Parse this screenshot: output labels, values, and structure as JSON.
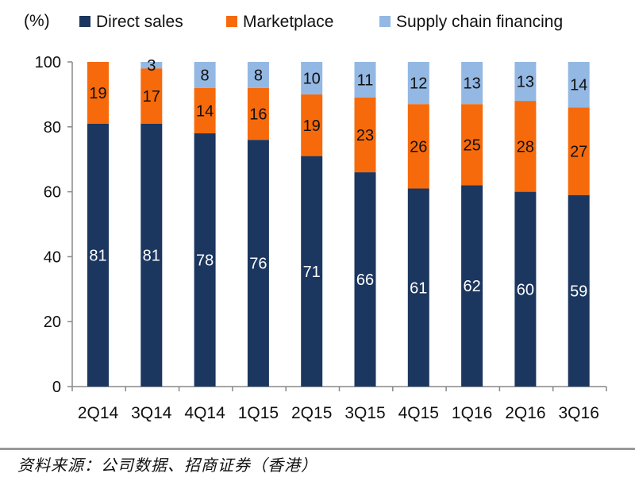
{
  "chart_data": {
    "type": "bar",
    "stacked": true,
    "unit_label": "(%)",
    "categories": [
      "2Q14",
      "3Q14",
      "4Q14",
      "1Q15",
      "2Q15",
      "3Q15",
      "4Q15",
      "1Q16",
      "2Q16",
      "3Q16"
    ],
    "series": [
      {
        "name": "Direct sales",
        "color": "#1b365f",
        "values": [
          81,
          81,
          78,
          76,
          71,
          66,
          61,
          62,
          60,
          59
        ]
      },
      {
        "name": "Marketplace",
        "color": "#f66a0b",
        "values": [
          19,
          17,
          14,
          16,
          19,
          23,
          26,
          25,
          28,
          27
        ]
      },
      {
        "name": "Supply chain financing",
        "color": "#93b8e3",
        "values": [
          null,
          3,
          8,
          8,
          10,
          11,
          12,
          13,
          13,
          14
        ]
      }
    ],
    "ylim": [
      0,
      100
    ],
    "yticks": [
      0,
      20,
      40,
      60,
      80,
      100
    ],
    "legend_position": "top",
    "grid": false
  },
  "footnote": "资料来源：公司数据、招商证券（香港）"
}
